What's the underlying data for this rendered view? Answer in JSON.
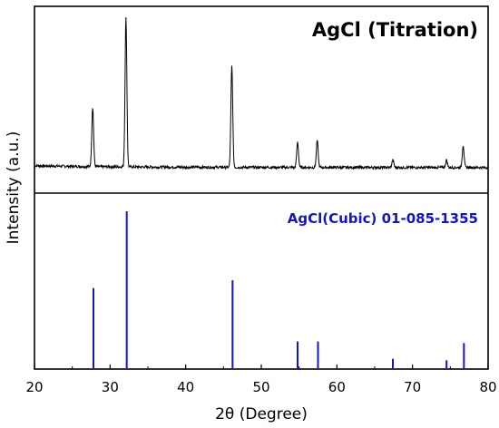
{
  "chart_data": [
    {
      "type": "line",
      "title": "AgCl (Titration)",
      "xlabel": "2θ (Degree)",
      "ylabel": "Intensity (a.u.)",
      "xlim": [
        20,
        80
      ],
      "x_ticks": [
        "20",
        "30",
        "40",
        "50",
        "60",
        "70",
        "80"
      ],
      "y_ticks_labeled": false,
      "grid": false,
      "series": [
        {
          "peaks": [
            {
              "x": 27.7,
              "y": 0.4
            },
            {
              "x": 32.1,
              "y": 1.0
            },
            {
              "x": 46.1,
              "y": 0.68
            },
            {
              "x": 54.8,
              "y": 0.17
            },
            {
              "x": 57.4,
              "y": 0.18
            },
            {
              "x": 67.4,
              "y": 0.05
            },
            {
              "x": 74.5,
              "y": 0.05
            },
            {
              "x": 76.7,
              "y": 0.15
            }
          ],
          "baseline": 0.02,
          "color": "#000000"
        }
      ]
    },
    {
      "type": "bar",
      "annotation": "AgCl(Cubic) 01-085-1355",
      "xlim": [
        20,
        80
      ],
      "grid": false,
      "series": [
        {
          "x": [
            27.8,
            32.2,
            46.2,
            54.8,
            57.5,
            67.4,
            74.5,
            76.8
          ],
          "values": [
            51,
            100,
            56,
            17,
            17,
            6,
            5,
            16
          ],
          "color": "#1515c8"
        }
      ]
    }
  ]
}
